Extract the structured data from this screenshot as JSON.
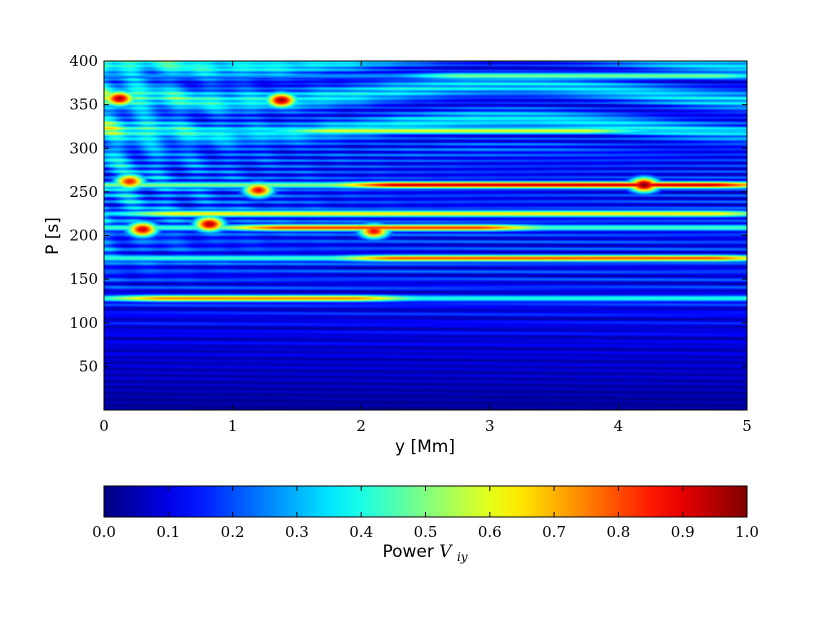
{
  "chart_data": {
    "type": "heatmap",
    "xlabel": "y [Mm]",
    "ylabel": "P [s]",
    "xlim": [
      0,
      5
    ],
    "ylim": [
      0,
      400
    ],
    "xticks": [
      "0",
      "1",
      "2",
      "3",
      "4",
      "5"
    ],
    "yticks": [
      "50",
      "100",
      "150",
      "200",
      "250",
      "300",
      "350",
      "400"
    ],
    "colormap": "jet",
    "colorbar": {
      "label_text": "Power ",
      "label_math": "V",
      "label_sub": "iy",
      "range": [
        0.0,
        1.0
      ],
      "ticks": [
        "0.0",
        "0.1",
        "0.2",
        "0.3",
        "0.4",
        "0.5",
        "0.6",
        "0.7",
        "0.8",
        "0.9",
        "1.0"
      ],
      "placement": "bottom"
    },
    "bands": [
      {
        "period": 258,
        "y_start": 2.0,
        "y_end": 5.0,
        "power": 0.92
      },
      {
        "period": 209,
        "y_start": 1.1,
        "y_end": 3.2,
        "power": 0.82
      },
      {
        "period": 174,
        "y_start": 2.0,
        "y_end": 5.0,
        "power": 0.8
      },
      {
        "period": 225,
        "y_start": 0.3,
        "y_end": 5.0,
        "power": 0.65
      },
      {
        "period": 128,
        "y_start": 0.2,
        "y_end": 2.2,
        "power": 0.75
      },
      {
        "period": 320,
        "y_start": 1.5,
        "y_end": 4.0,
        "power": 0.6
      },
      {
        "period": 383,
        "y_start": 2.5,
        "y_end": 5.0,
        "power": 0.5
      }
    ],
    "hotspots": [
      {
        "y": 0.12,
        "period": 357,
        "power": 0.95
      },
      {
        "y": 1.38,
        "period": 355,
        "power": 0.97
      },
      {
        "y": 0.82,
        "period": 213,
        "power": 0.95
      },
      {
        "y": 0.3,
        "period": 207,
        "power": 0.92
      },
      {
        "y": 4.2,
        "period": 258,
        "power": 1.0
      },
      {
        "y": 2.1,
        "period": 205,
        "power": 0.88
      },
      {
        "y": 0.2,
        "period": 262,
        "power": 0.85
      },
      {
        "y": 1.2,
        "period": 252,
        "power": 0.88
      }
    ]
  }
}
